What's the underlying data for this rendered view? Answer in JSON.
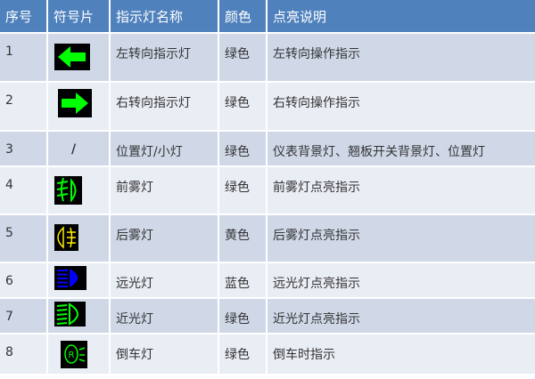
{
  "headers": [
    "序号",
    "符号片",
    "指示灯名称",
    "颜色",
    "点亮说明"
  ],
  "rows": [
    {
      "no": "1",
      "symbol": "left-turn-arrow-icon",
      "name": "左转向指示灯",
      "color": "绿色",
      "desc": "左转向操作指示"
    },
    {
      "no": "2",
      "symbol": "right-turn-arrow-icon",
      "name": "右转向指示灯",
      "color": "绿色",
      "desc": "右转向操作指示"
    },
    {
      "no": "3",
      "symbol_text": "/",
      "name": "位置灯/小灯",
      "color": "绿色",
      "desc": "仪表背景灯、翘板开关背景灯、位置灯"
    },
    {
      "no": "4",
      "symbol": "front-fog-lamp-icon",
      "name": "前雾灯",
      "color": "绿色",
      "desc": "前雾灯点亮指示"
    },
    {
      "no": "5",
      "symbol": "rear-fog-lamp-icon",
      "name": "后雾灯",
      "color": "黄色",
      "desc": "后雾灯点亮指示"
    },
    {
      "no": "6",
      "symbol": "high-beam-icon",
      "name": "远光灯",
      "color": "蓝色",
      "desc": "远光灯点亮指示"
    },
    {
      "no": "7",
      "symbol": "low-beam-icon",
      "name": "近光灯",
      "color": "绿色",
      "desc": "近光灯点亮指示"
    },
    {
      "no": "8",
      "symbol": "reverse-lamp-icon",
      "name": "倒车灯",
      "color": "绿色",
      "desc": "倒车时指示"
    }
  ],
  "colors": {
    "header": "#4f81bd",
    "row_dark": "#d0d8e8",
    "row_light": "#e9edf4",
    "green": "#00ff00",
    "yellow": "#ffee00",
    "blue": "#0000ff"
  }
}
